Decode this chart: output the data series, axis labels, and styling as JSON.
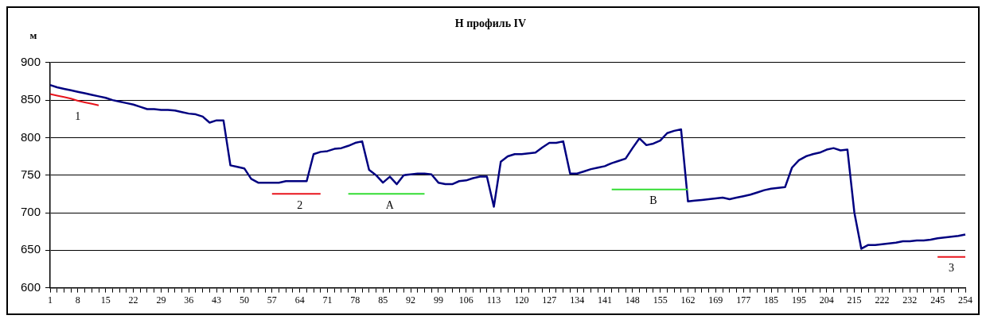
{
  "chart_data": {
    "type": "line",
    "title": "Н профиль IV",
    "ylabel": "м",
    "categories": [
      "1",
      null,
      null,
      null,
      "8",
      null,
      null,
      null,
      "15",
      null,
      null,
      null,
      "22",
      null,
      null,
      null,
      "29",
      null,
      null,
      null,
      "36",
      null,
      null,
      null,
      "43",
      null,
      null,
      null,
      "50",
      null,
      null,
      null,
      "57",
      null,
      null,
      null,
      "64",
      null,
      null,
      null,
      "71",
      null,
      null,
      null,
      "78",
      null,
      null,
      null,
      "85",
      null,
      null,
      null,
      "92",
      null,
      null,
      null,
      "99",
      null,
      null,
      null,
      "106",
      null,
      null,
      null,
      "113",
      null,
      null,
      null,
      "120",
      null,
      null,
      null,
      "127",
      null,
      null,
      null,
      "134",
      null,
      null,
      null,
      "141",
      null,
      null,
      null,
      "148",
      null,
      null,
      null,
      "155",
      null,
      null,
      null,
      "162",
      null,
      null,
      null,
      "169",
      null,
      null,
      null,
      "177",
      null,
      null,
      null,
      "185",
      null,
      null,
      null,
      "195",
      null,
      null,
      null,
      "204",
      null,
      null,
      null,
      "215",
      null,
      null,
      null,
      "222",
      null,
      null,
      null,
      "232",
      null,
      null,
      null,
      "245",
      null,
      null,
      null,
      "254"
    ],
    "series": [
      {
        "color": "#000080",
        "values": [
          870,
          867,
          865,
          863,
          861,
          859,
          857,
          855,
          853,
          850,
          848,
          846,
          844,
          841,
          838,
          838,
          837,
          837,
          836,
          834,
          832,
          831,
          828,
          820,
          823,
          823,
          763,
          761,
          759,
          745,
          740,
          740,
          740,
          740,
          742,
          742,
          742,
          742,
          778,
          781,
          782,
          785,
          786,
          789,
          793,
          795,
          757,
          750,
          740,
          748,
          738,
          750,
          751,
          752,
          752,
          751,
          740,
          738,
          738,
          742,
          743,
          746,
          748,
          748,
          708,
          768,
          775,
          778,
          778,
          779,
          780,
          787,
          793,
          793,
          795,
          752,
          752,
          755,
          758,
          760,
          762,
          766,
          769,
          772,
          786,
          799,
          790,
          792,
          796,
          806,
          809,
          811,
          715,
          716,
          717,
          718,
          719,
          720,
          718,
          720,
          722,
          724,
          727,
          730,
          732,
          733,
          734,
          760,
          770,
          775,
          778,
          780,
          784,
          786,
          783,
          784,
          700,
          652,
          657,
          657,
          658,
          659,
          660,
          662,
          662,
          663,
          663,
          664,
          666,
          667,
          668,
          669,
          671
        ]
      },
      {
        "name": "1",
        "color": "#e8141c",
        "values": [
          858,
          856,
          854,
          852,
          849,
          847,
          845,
          843,
          null,
          null,
          null,
          null,
          null,
          null,
          null,
          null,
          null,
          null,
          null,
          null,
          null,
          null,
          null,
          null,
          null,
          null,
          null,
          null,
          null,
          null,
          null,
          null,
          null,
          null,
          null,
          null,
          null,
          null,
          null,
          null,
          null,
          null,
          null,
          null,
          null,
          null,
          null,
          null,
          null,
          null,
          null,
          null,
          null,
          null,
          null,
          null,
          null,
          null,
          null,
          null,
          null,
          null,
          null,
          null,
          null,
          null,
          null,
          null,
          null,
          null,
          null,
          null,
          null,
          null,
          null,
          null,
          null,
          null,
          null,
          null,
          null,
          null,
          null,
          null,
          null,
          null,
          null,
          null,
          null,
          null,
          null,
          null,
          null,
          null,
          null,
          null,
          null,
          null,
          null,
          null,
          null,
          null,
          null,
          null,
          null,
          null,
          null,
          null,
          null,
          null,
          null,
          null,
          null,
          null,
          null,
          null,
          null,
          null,
          null,
          null,
          null,
          null,
          null,
          null,
          null,
          null,
          null,
          null,
          null,
          null,
          null,
          null,
          null
        ]
      },
      {
        "name": "2",
        "color": "#e8141c",
        "values": [
          null,
          null,
          null,
          null,
          null,
          null,
          null,
          null,
          null,
          null,
          null,
          null,
          null,
          null,
          null,
          null,
          null,
          null,
          null,
          null,
          null,
          null,
          null,
          null,
          null,
          null,
          null,
          null,
          null,
          null,
          null,
          null,
          725,
          725,
          725,
          725,
          725,
          725,
          725,
          725,
          null,
          null,
          null,
          null,
          null,
          null,
          null,
          null,
          null,
          null,
          null,
          null,
          null,
          null,
          null,
          null,
          null,
          null,
          null,
          null,
          null,
          null,
          null,
          null,
          null,
          null,
          null,
          null,
          null,
          null,
          null,
          null,
          null,
          null,
          null,
          null,
          null,
          null,
          null,
          null,
          null,
          null,
          null,
          null,
          null,
          null,
          null,
          null,
          null,
          null,
          null,
          null,
          null,
          null,
          null,
          null,
          null,
          null,
          null,
          null,
          null,
          null,
          null,
          null,
          null,
          null,
          null,
          null,
          null,
          null,
          null,
          null,
          null,
          null,
          null,
          null,
          null,
          null,
          null,
          null,
          null,
          null,
          null,
          null,
          null,
          null,
          null,
          null,
          null,
          null,
          null,
          null,
          null
        ]
      },
      {
        "name": "A",
        "color": "#33dd33",
        "values": [
          null,
          null,
          null,
          null,
          null,
          null,
          null,
          null,
          null,
          null,
          null,
          null,
          null,
          null,
          null,
          null,
          null,
          null,
          null,
          null,
          null,
          null,
          null,
          null,
          null,
          null,
          null,
          null,
          null,
          null,
          null,
          null,
          null,
          null,
          null,
          null,
          null,
          null,
          null,
          null,
          null,
          null,
          null,
          725,
          725,
          725,
          725,
          725,
          725,
          725,
          725,
          725,
          725,
          725,
          725,
          null,
          null,
          null,
          null,
          null,
          null,
          null,
          null,
          null,
          null,
          null,
          null,
          null,
          null,
          null,
          null,
          null,
          null,
          null,
          null,
          null,
          null,
          null,
          null,
          null,
          null,
          null,
          null,
          null,
          null,
          null,
          null,
          null,
          null,
          null,
          null,
          null,
          null,
          null,
          null,
          null,
          null,
          null,
          null,
          null,
          null,
          null,
          null,
          null,
          null,
          null,
          null,
          null,
          null,
          null,
          null,
          null,
          null,
          null,
          null,
          null,
          null,
          null,
          null,
          null,
          null,
          null,
          null,
          null,
          null,
          null,
          null,
          null,
          null,
          null,
          null,
          null,
          null
        ]
      },
      {
        "name": "B",
        "color": "#33dd33",
        "values": [
          null,
          null,
          null,
          null,
          null,
          null,
          null,
          null,
          null,
          null,
          null,
          null,
          null,
          null,
          null,
          null,
          null,
          null,
          null,
          null,
          null,
          null,
          null,
          null,
          null,
          null,
          null,
          null,
          null,
          null,
          null,
          null,
          null,
          null,
          null,
          null,
          null,
          null,
          null,
          null,
          null,
          null,
          null,
          null,
          null,
          null,
          null,
          null,
          null,
          null,
          null,
          null,
          null,
          null,
          null,
          null,
          null,
          null,
          null,
          null,
          null,
          null,
          null,
          null,
          null,
          null,
          null,
          null,
          null,
          null,
          null,
          null,
          null,
          null,
          null,
          null,
          null,
          null,
          null,
          null,
          null,
          731,
          731,
          731,
          731,
          731,
          731,
          731,
          731,
          731,
          731,
          731,
          731,
          null,
          null,
          null,
          null,
          null,
          null,
          null,
          null,
          null,
          null,
          null,
          null,
          null,
          null,
          null,
          null,
          null,
          null,
          null,
          null,
          null,
          null,
          null,
          null,
          null,
          null,
          null,
          null,
          null,
          null,
          null,
          null,
          null,
          null,
          null,
          null,
          null,
          null,
          null,
          null
        ]
      },
      {
        "name": "3",
        "color": "#e8141c",
        "values": [
          null,
          null,
          null,
          null,
          null,
          null,
          null,
          null,
          null,
          null,
          null,
          null,
          null,
          null,
          null,
          null,
          null,
          null,
          null,
          null,
          null,
          null,
          null,
          null,
          null,
          null,
          null,
          null,
          null,
          null,
          null,
          null,
          null,
          null,
          null,
          null,
          null,
          null,
          null,
          null,
          null,
          null,
          null,
          null,
          null,
          null,
          null,
          null,
          null,
          null,
          null,
          null,
          null,
          null,
          null,
          null,
          null,
          null,
          null,
          null,
          null,
          null,
          null,
          null,
          null,
          null,
          null,
          null,
          null,
          null,
          null,
          null,
          null,
          null,
          null,
          null,
          null,
          null,
          null,
          null,
          null,
          null,
          null,
          null,
          null,
          null,
          null,
          null,
          null,
          null,
          null,
          null,
          null,
          null,
          null,
          null,
          null,
          null,
          null,
          null,
          null,
          null,
          null,
          null,
          null,
          null,
          null,
          null,
          null,
          null,
          null,
          null,
          null,
          null,
          null,
          null,
          null,
          null,
          null,
          null,
          null,
          null,
          null,
          null,
          null,
          null,
          null,
          null,
          641,
          641,
          641,
          641,
          641
        ]
      }
    ],
    "ylim": [
      600,
      900
    ],
    "yticks": [
      600,
      650,
      700,
      750,
      800,
      850,
      900
    ],
    "grid": "y",
    "legend": false,
    "marker": "none",
    "line_style": "solid"
  }
}
